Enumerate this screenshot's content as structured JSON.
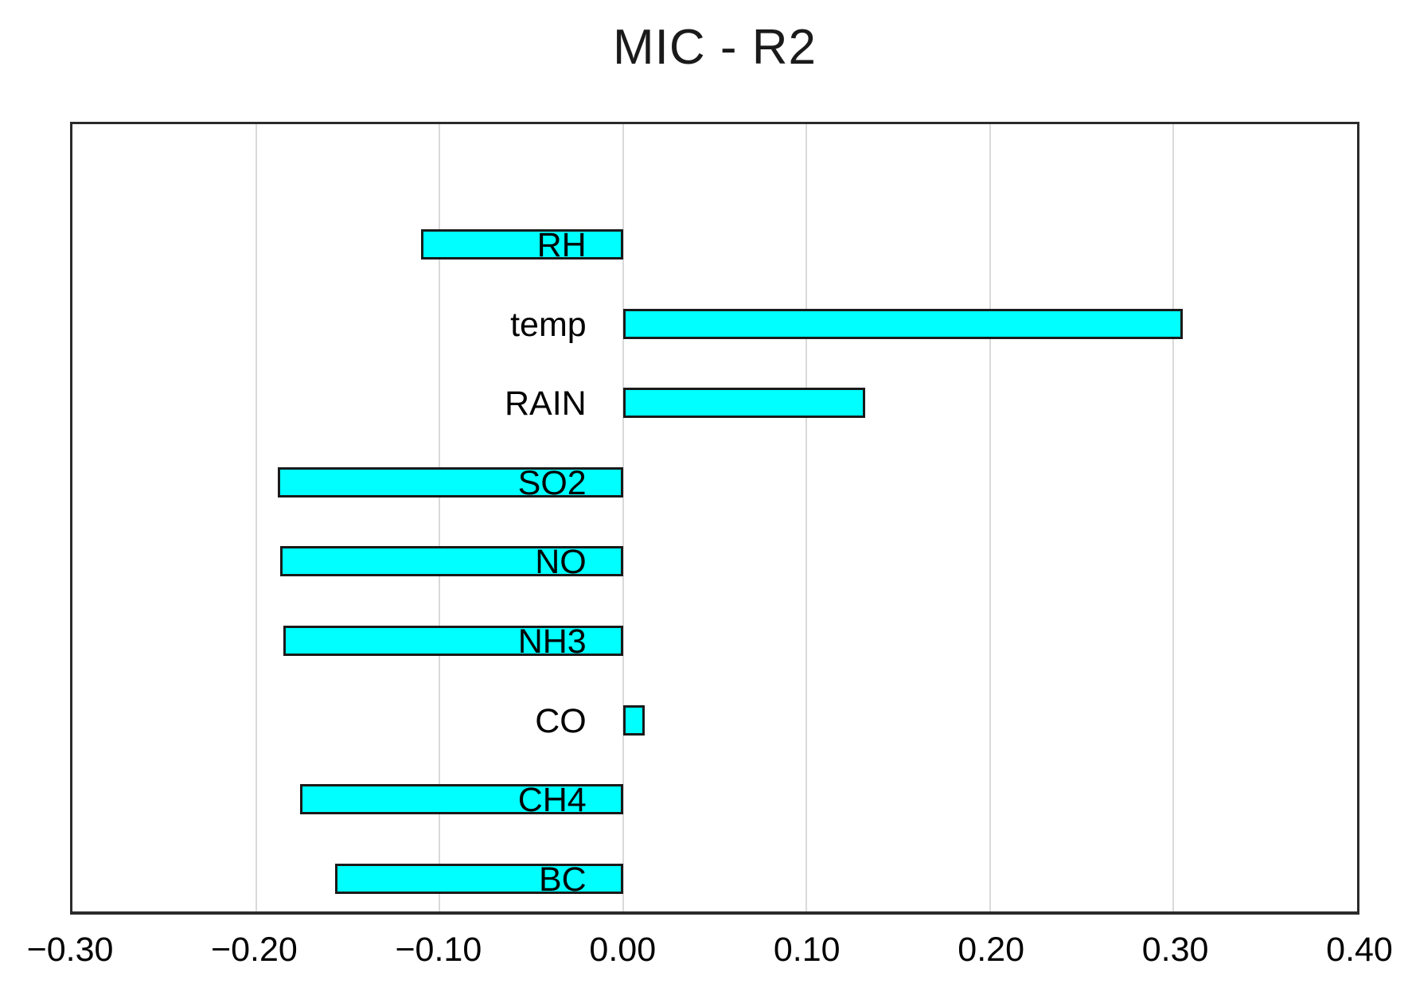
{
  "title": "MIC - R2",
  "colors": {
    "background": "#FFFFFF",
    "bar_fill": "#00FFFF",
    "bar_border": "#1A1A1A",
    "gridline": "#D9D9D9",
    "plot_border": "#2B2B2B",
    "text": "#000000"
  },
  "chart_data": {
    "type": "bar",
    "orientation": "horizontal",
    "title": "MIC - R2",
    "categories": [
      "RH",
      "temp",
      "RAIN",
      "SO2",
      "NO",
      "NH3",
      "CO",
      "CH4",
      "BC"
    ],
    "values": [
      -0.11,
      0.305,
      0.132,
      -0.188,
      -0.187,
      -0.185,
      0.012,
      -0.176,
      -0.157
    ],
    "xlim": [
      -0.3,
      0.4
    ],
    "x_tick_values": [
      -0.3,
      -0.2,
      -0.1,
      0.0,
      0.1,
      0.2,
      0.3,
      0.4
    ],
    "x_tick_labels": [
      "−0.30",
      "−0.20",
      "−0.10",
      "0.00",
      "0.10",
      "0.20",
      "0.30",
      "0.40"
    ],
    "gridlines_at": [
      -0.2,
      -0.1,
      0.0,
      0.1,
      0.2,
      0.3
    ],
    "grid": "vertical",
    "legend": "none",
    "xlabel": "",
    "ylabel": ""
  }
}
